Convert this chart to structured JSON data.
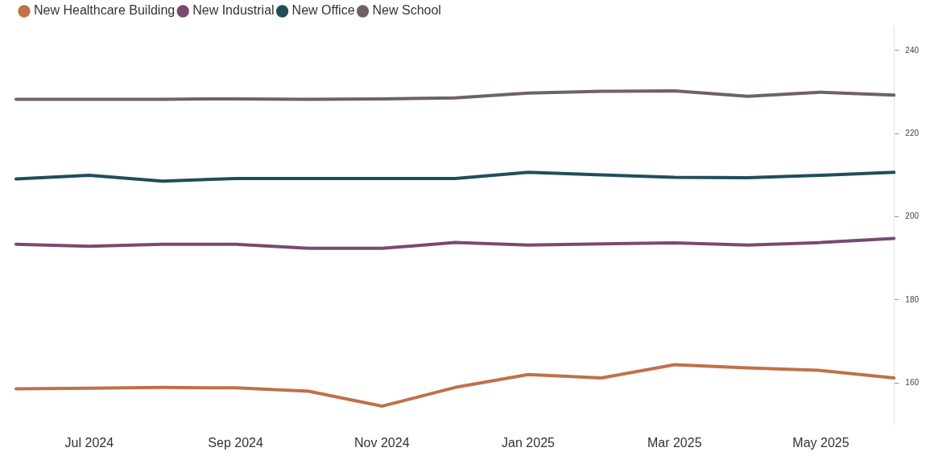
{
  "chart_data": {
    "type": "line",
    "categories": [
      null,
      "Jul 2024",
      null,
      "Sep 2024",
      null,
      "Nov 2024",
      null,
      "Jan 2025",
      null,
      "Mar 2025",
      null,
      "May 2025",
      null
    ],
    "series": [
      {
        "name": "New Healthcare Building",
        "color": "#c0704a",
        "values": [
          158.6,
          158.7,
          158.9,
          158.8,
          158.0,
          154.4,
          158.9,
          162.0,
          161.2,
          164.4,
          163.6,
          163.0,
          161.2
        ]
      },
      {
        "name": "New Industrial",
        "color": "#7a4a6e",
        "values": [
          193.4,
          192.9,
          193.4,
          193.4,
          192.4,
          192.4,
          193.8,
          193.2,
          193.5,
          193.7,
          193.2,
          193.8,
          194.8
        ]
      },
      {
        "name": "New Office",
        "color": "#1f4e5a",
        "values": [
          209.1,
          210.0,
          208.6,
          209.2,
          209.2,
          209.2,
          209.2,
          210.7,
          210.1,
          209.5,
          209.4,
          210.0,
          210.7
        ]
      },
      {
        "name": "New School",
        "color": "#6e6262",
        "values": [
          228.3,
          228.3,
          228.3,
          228.4,
          228.3,
          228.4,
          228.6,
          229.8,
          230.2,
          230.3,
          229.0,
          230.0,
          229.3
        ]
      }
    ],
    "ylim": [
      150,
      246
    ],
    "yticks": [
      160,
      180,
      200,
      220,
      240
    ],
    "grid": false,
    "legend": "top left",
    "marker": "none",
    "line_style": "solid"
  }
}
